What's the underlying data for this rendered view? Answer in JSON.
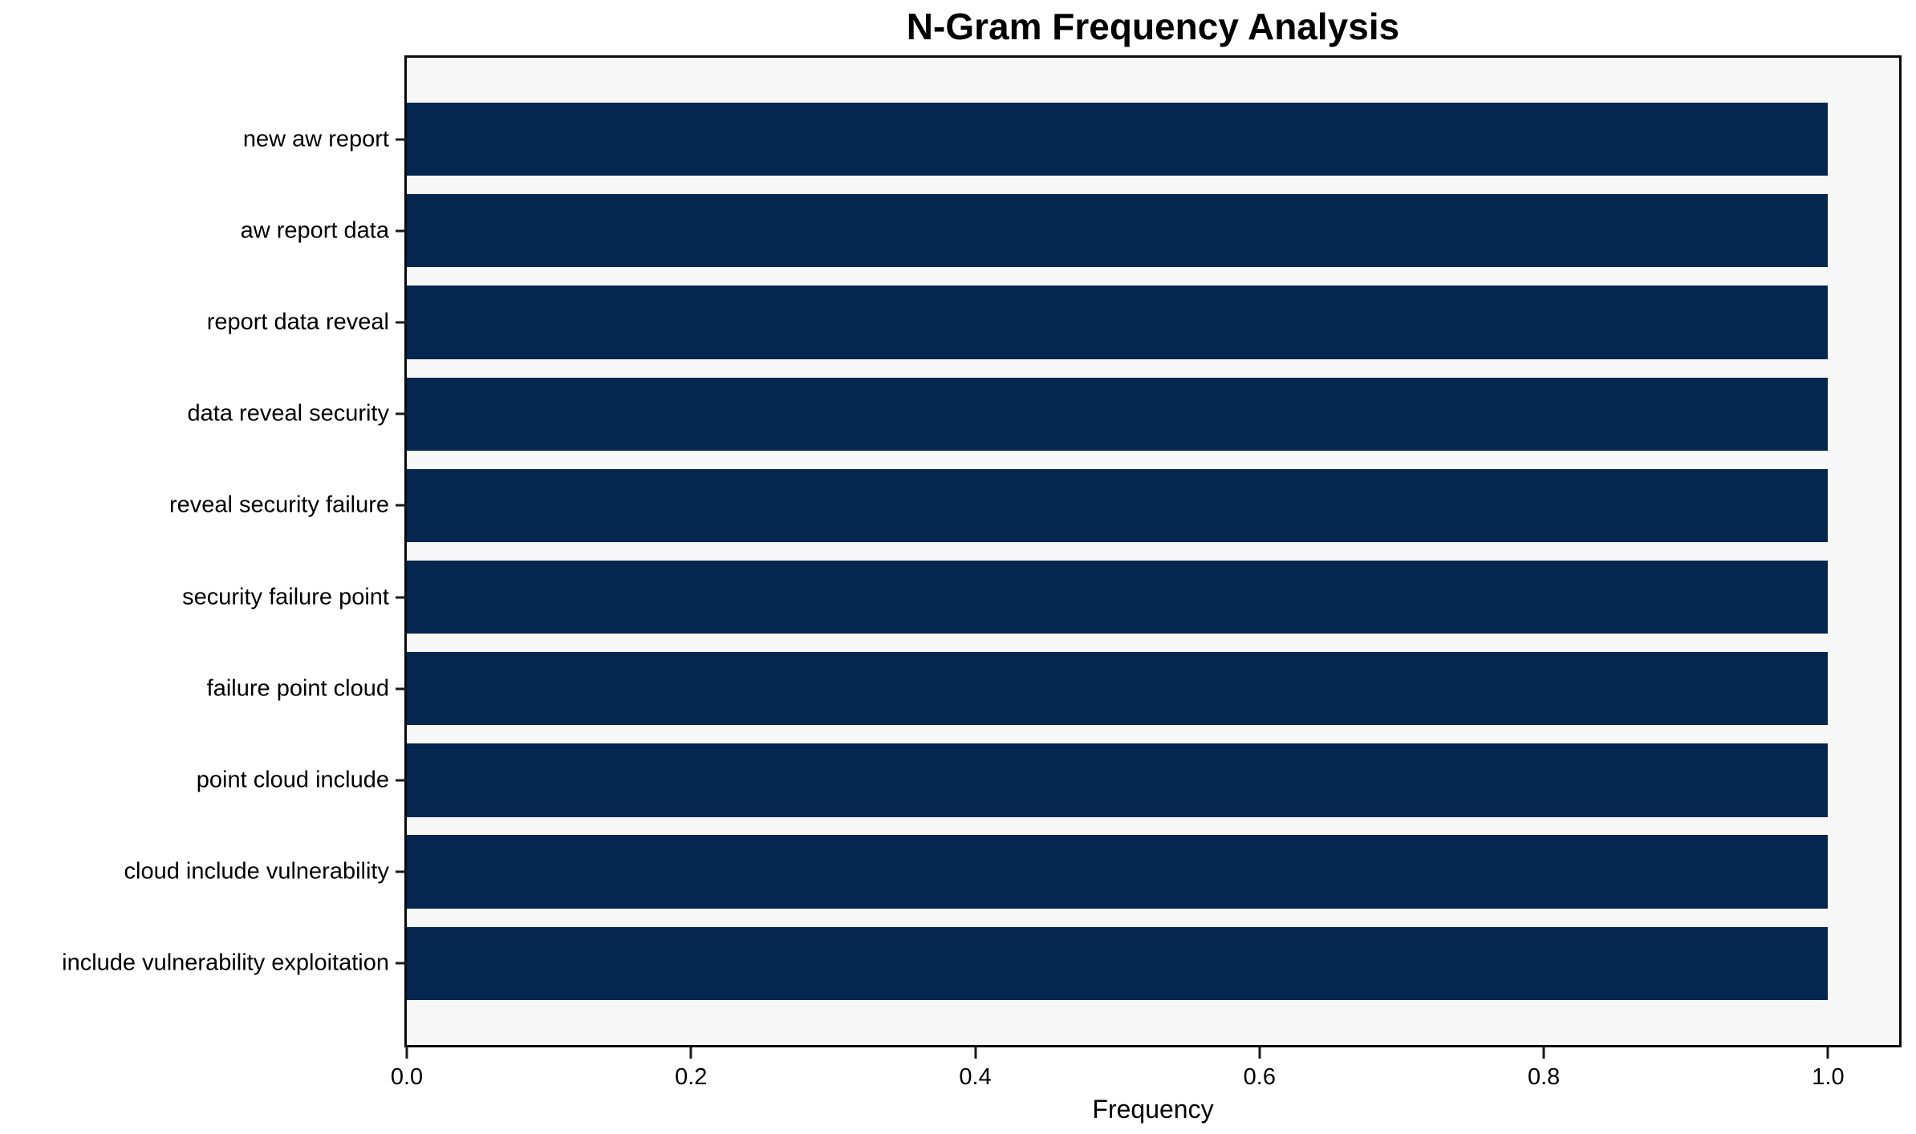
{
  "chart_data": {
    "type": "bar",
    "orientation": "horizontal",
    "title": "N-Gram Frequency Analysis",
    "xlabel": "Frequency",
    "ylabel": "",
    "categories": [
      "new aw report",
      "aw report data",
      "report data reveal",
      "data reveal security",
      "reveal security failure",
      "security failure point",
      "failure point cloud",
      "point cloud include",
      "cloud include vulnerability",
      "include vulnerability exploitation"
    ],
    "values": [
      1.0,
      1.0,
      1.0,
      1.0,
      1.0,
      1.0,
      1.0,
      1.0,
      1.0,
      1.0
    ],
    "xticks": [
      0.0,
      0.2,
      0.4,
      0.6,
      0.8,
      1.0
    ],
    "xtick_labels": [
      "0.0",
      "0.2",
      "0.4",
      "0.6",
      "0.8",
      "1.0"
    ],
    "xlim": [
      0,
      1.05
    ],
    "bar_height_ratio": 0.8,
    "grid": false,
    "legend": "none",
    "colors": {
      "bar": "#05264e",
      "plot_background": "#f7f7f7",
      "figure_background": "#ffffff",
      "spine": "#0a0a0a",
      "text": "#000000"
    }
  }
}
